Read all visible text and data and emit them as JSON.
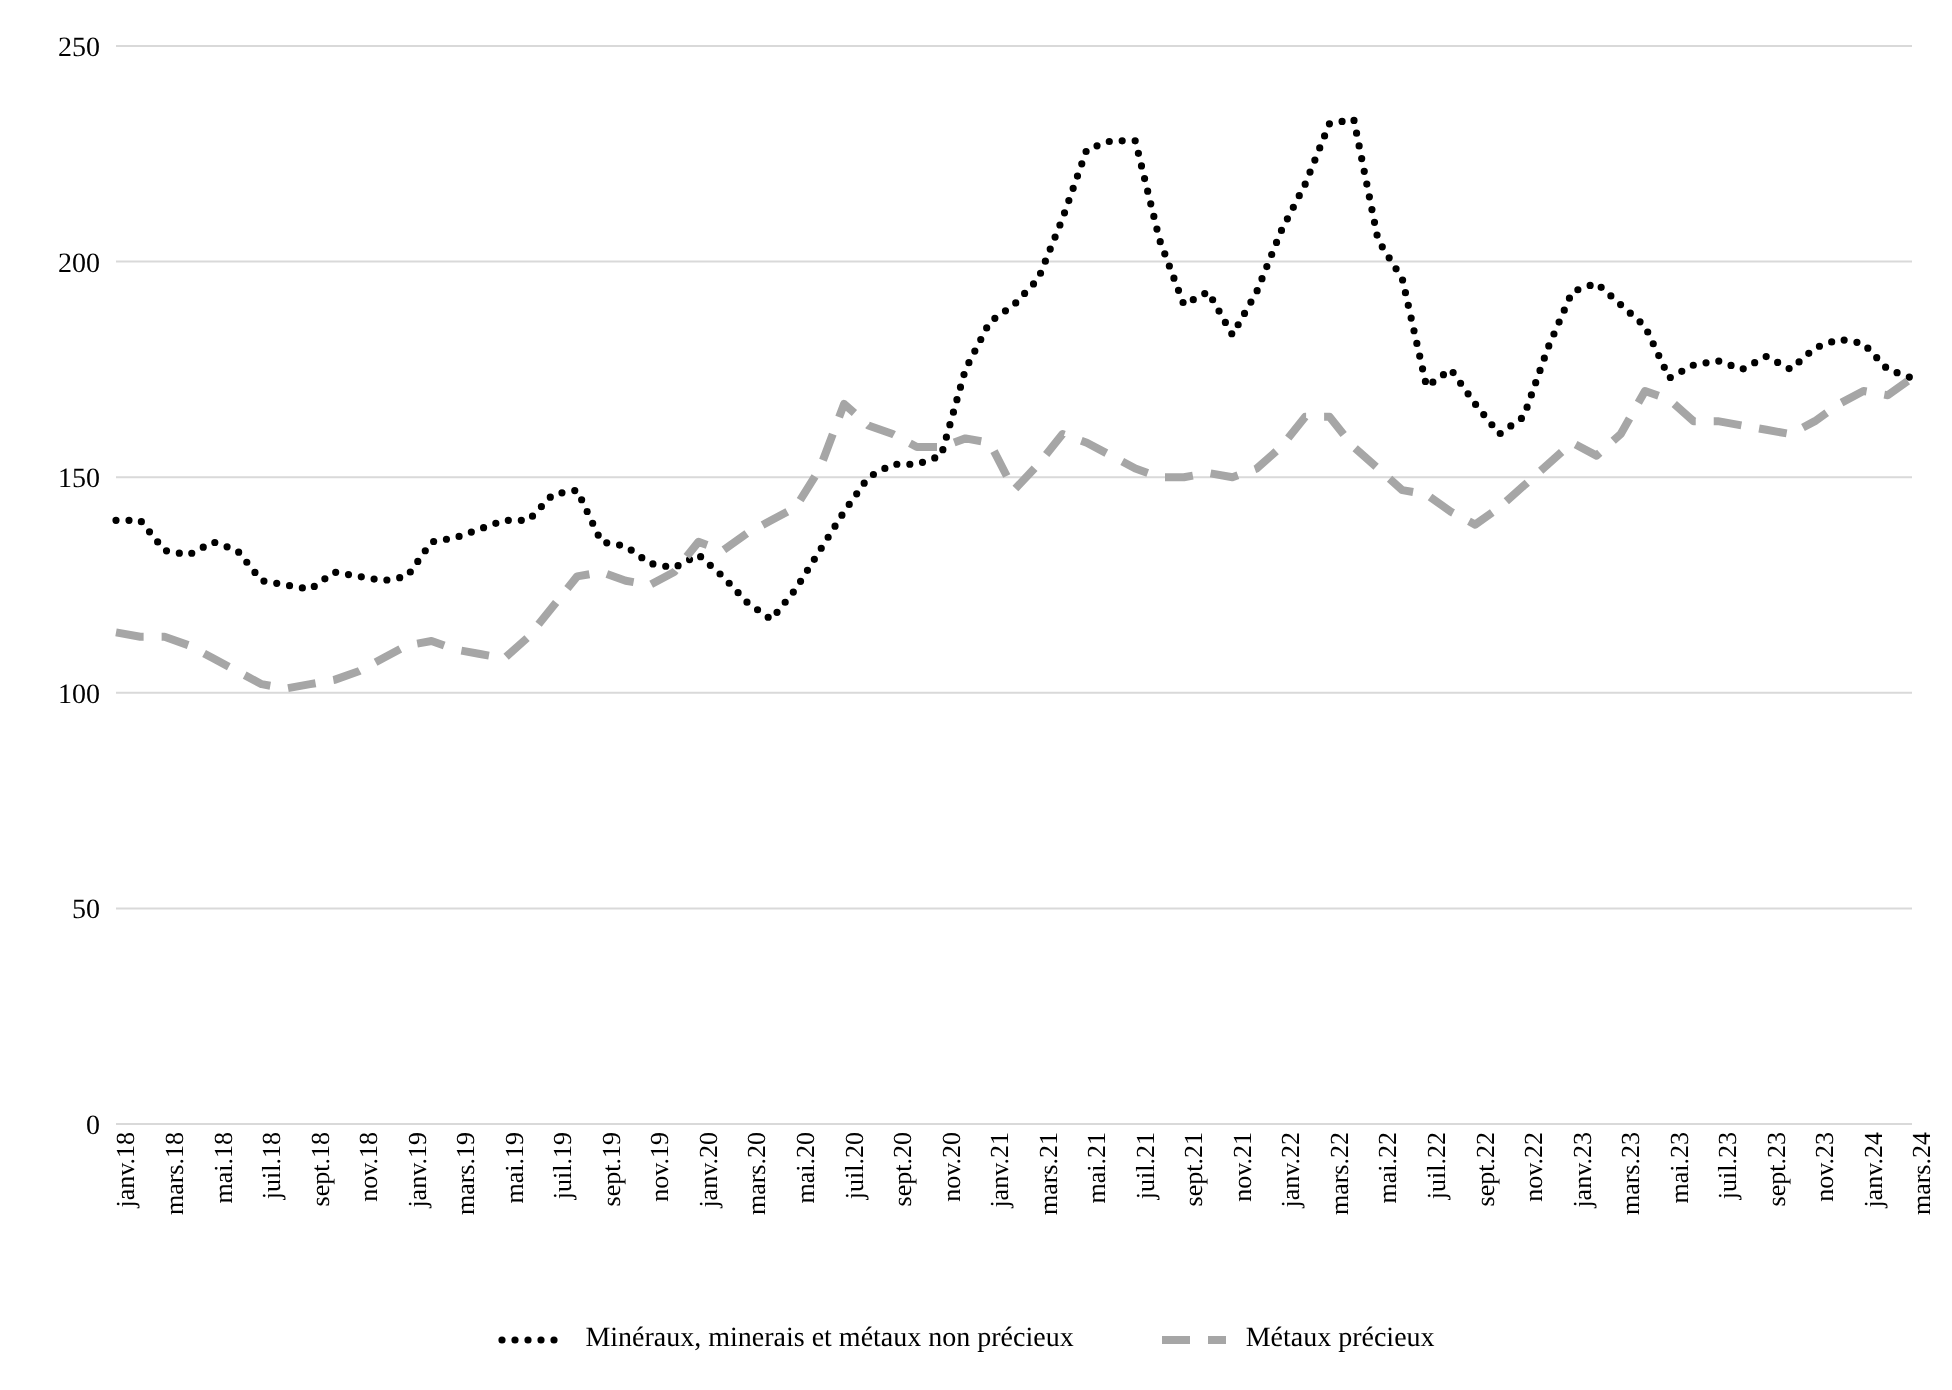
{
  "chart_data": {
    "type": "line",
    "categories": [
      "janv.18",
      null,
      "mars.18",
      null,
      "mai.18",
      null,
      "juil.18",
      null,
      "sept.18",
      null,
      "nov.18",
      null,
      "janv.19",
      null,
      "mars.19",
      null,
      "mai.19",
      null,
      "juil.19",
      null,
      "sept.19",
      null,
      "nov.19",
      null,
      "janv.20",
      null,
      "mars.20",
      null,
      "mai.20",
      null,
      "juil.20",
      null,
      "sept.20",
      null,
      "nov.20",
      null,
      "janv.21",
      null,
      "mars.21",
      null,
      "mai.21",
      null,
      "juil.21",
      null,
      "sept.21",
      null,
      "nov.21",
      null,
      "janv.22",
      null,
      "mars.22",
      null,
      "mai.22",
      null,
      "juil.22",
      null,
      "sept.22",
      null,
      "nov.22",
      null,
      "janv.23",
      null,
      "mars.23",
      null,
      "mai.23",
      null,
      "juil.23",
      null,
      "sept.23",
      null,
      "nov.23",
      null,
      "janv.24",
      null,
      "mars.24"
    ],
    "series": [
      {
        "name": "Minéraux, minerais et métaux non précieux",
        "color": "#000000",
        "line_style": "dotted",
        "values": [
          140,
          140,
          133,
          132,
          135,
          133,
          126,
          125,
          124,
          128,
          127,
          126,
          127,
          135,
          136,
          138,
          140,
          140,
          146,
          147,
          135,
          134,
          130,
          129,
          132,
          127,
          121,
          117,
          124,
          133,
          142,
          150,
          153,
          153,
          155,
          175,
          186,
          190,
          196,
          210,
          226,
          228,
          228,
          205,
          190,
          193,
          183,
          193,
          207,
          218,
          232,
          233,
          205,
          196,
          171,
          175,
          167,
          160,
          164,
          180,
          193,
          195,
          190,
          185,
          173,
          176,
          177,
          175,
          178,
          175,
          180,
          182,
          181,
          175,
          173
        ]
      },
      {
        "name": "Métaux précieux",
        "color": "#a6a6a6",
        "line_style": "dashed",
        "values": [
          114,
          113,
          113,
          111,
          108,
          105,
          102,
          101,
          102,
          103,
          105,
          108,
          111,
          112,
          110,
          109,
          108,
          113,
          120,
          127,
          128,
          126,
          125,
          128,
          135,
          133,
          137,
          140,
          143,
          152,
          167,
          162,
          160,
          157,
          157,
          159,
          158,
          147,
          153,
          160,
          158,
          155,
          152,
          150,
          150,
          151,
          150,
          152,
          157,
          164,
          164,
          157,
          152,
          147,
          146,
          142,
          139,
          143,
          148,
          153,
          158,
          155,
          160,
          170,
          168,
          163,
          163,
          162,
          161,
          160,
          163,
          167,
          170,
          169,
          173
        ]
      }
    ],
    "ylim": [
      0,
      250
    ],
    "yticks": [
      0,
      50,
      100,
      150,
      200,
      250
    ],
    "grid": "y",
    "legend": "bottom",
    "marker": "none"
  }
}
